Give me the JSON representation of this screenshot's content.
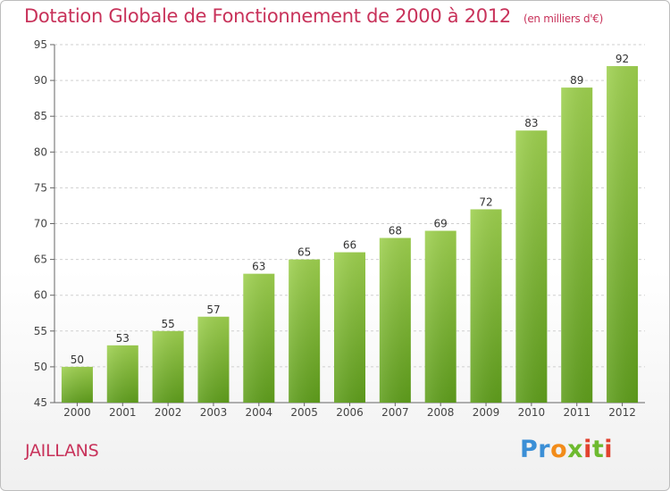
{
  "header": {
    "title": "Dotation Globale de Fonctionnement de 2000 à 2012",
    "unit": "(en milliers d'€)"
  },
  "footer": {
    "commune": "JAILLANS",
    "logo": {
      "p1": "Pr",
      "p2": "o",
      "p3": "x",
      "p4": "i",
      "p5": "t",
      "p6": "i"
    }
  },
  "colors": {
    "title": "#c8325a",
    "bar_top": "#9ed04f",
    "bar_bottom": "#5f9e1c",
    "grid": "#cfcfcf"
  },
  "chart_data": {
    "type": "bar",
    "title": "Dotation Globale de Fonctionnement de 2000 à 2012",
    "subtitle": "(en milliers d'€)",
    "categories": [
      "2000",
      "2001",
      "2002",
      "2003",
      "2004",
      "2005",
      "2006",
      "2007",
      "2008",
      "2009",
      "2010",
      "2011",
      "2012"
    ],
    "values": [
      50,
      53,
      55,
      57,
      63,
      65,
      66,
      68,
      69,
      72,
      83,
      89,
      92
    ],
    "ylim": [
      45,
      95
    ],
    "yticks": [
      45,
      50,
      55,
      60,
      65,
      70,
      75,
      80,
      85,
      90,
      95
    ],
    "xlabel": "",
    "ylabel": "",
    "grid": "horizontal dashed",
    "data_labels": true
  }
}
